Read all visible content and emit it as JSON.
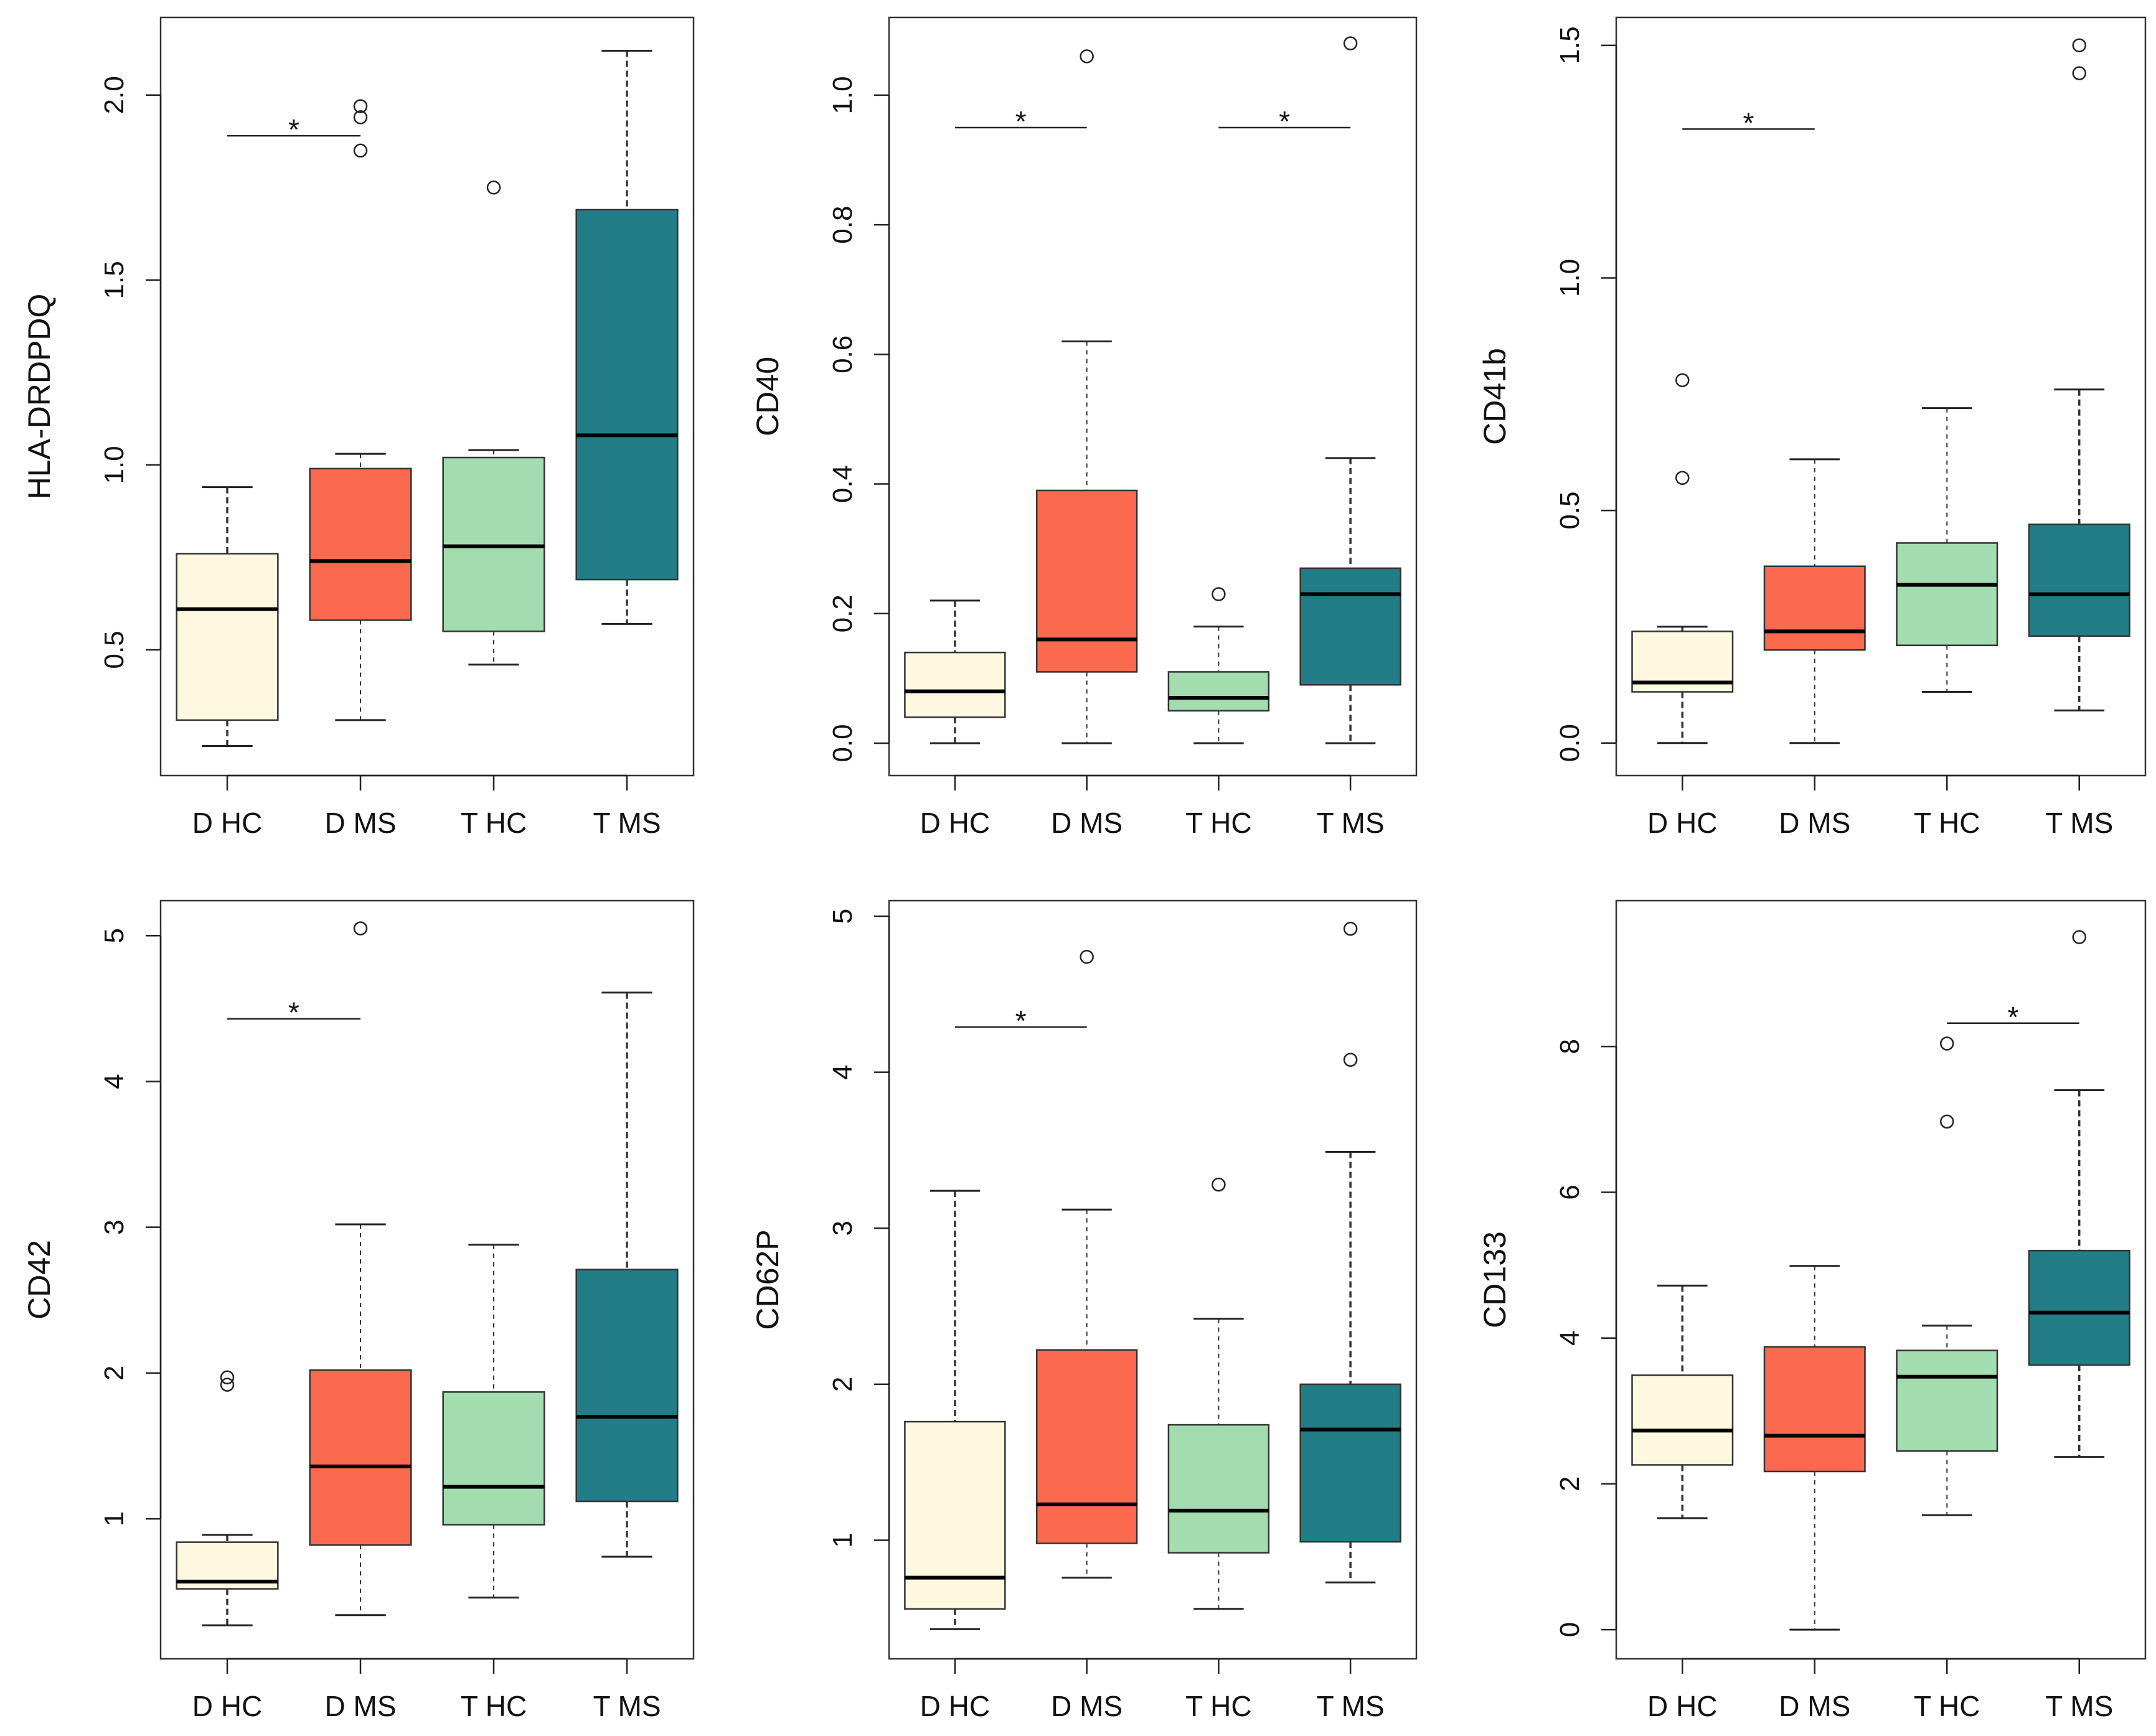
{
  "figure": {
    "categories": [
      "D HC",
      "D MS",
      "T HC",
      "T MS"
    ],
    "colors": {
      "D HC": "#fdf8df",
      "D MS": "#fb6a4e",
      "T HC": "#a3dcae",
      "T MS": "#237d86",
      "median": "#000000",
      "frame": "#333333"
    },
    "significance_symbol": "*"
  },
  "chart_data": [
    {
      "type": "box",
      "ylabel": "HLA-DRDPDQ",
      "ylim": [
        0.16,
        2.21
      ],
      "ticks": [
        0.5,
        1.0,
        1.5,
        2.0
      ],
      "tick_labels": [
        "0.5",
        "1.0",
        "1.5",
        "2.0"
      ],
      "boxes": [
        {
          "name": "D HC",
          "whislo": 0.24,
          "q1": 0.31,
          "med": 0.61,
          "q3": 0.76,
          "whishi": 0.94,
          "fliers": []
        },
        {
          "name": "D MS",
          "whislo": 0.31,
          "q1": 0.58,
          "med": 0.74,
          "q3": 0.99,
          "whishi": 1.03,
          "fliers": [
            1.85,
            1.94,
            1.97
          ]
        },
        {
          "name": "T HC",
          "whislo": 0.46,
          "q1": 0.55,
          "med": 0.78,
          "q3": 1.02,
          "whishi": 1.04,
          "fliers": [
            1.75
          ]
        },
        {
          "name": "T MS",
          "whislo": 0.57,
          "q1": 0.69,
          "med": 1.08,
          "q3": 1.69,
          "whishi": 2.12,
          "fliers": []
        }
      ],
      "significance": [
        {
          "from": "D HC",
          "to": "D MS",
          "y": 1.89
        }
      ]
    },
    {
      "type": "box",
      "ylabel": "CD40",
      "ylim": [
        -0.05,
        1.12
      ],
      "ticks": [
        0.0,
        0.2,
        0.4,
        0.6,
        0.8,
        1.0
      ],
      "tick_labels": [
        "0.0",
        "0.2",
        "0.4",
        "0.6",
        "0.8",
        "1.0"
      ],
      "boxes": [
        {
          "name": "D HC",
          "whislo": 0.0,
          "q1": 0.04,
          "med": 0.08,
          "q3": 0.14,
          "whishi": 0.22,
          "fliers": []
        },
        {
          "name": "D MS",
          "whislo": 0.0,
          "q1": 0.11,
          "med": 0.16,
          "q3": 0.39,
          "whishi": 0.62,
          "fliers": [
            1.06
          ]
        },
        {
          "name": "T HC",
          "whislo": 0.0,
          "q1": 0.05,
          "med": 0.07,
          "q3": 0.11,
          "whishi": 0.18,
          "fliers": [
            0.23
          ]
        },
        {
          "name": "T MS",
          "whislo": 0.0,
          "q1": 0.09,
          "med": 0.23,
          "q3": 0.27,
          "whishi": 0.44,
          "fliers": [
            1.08
          ]
        }
      ],
      "significance": [
        {
          "from": "D HC",
          "to": "D MS",
          "y": 0.95
        },
        {
          "from": "T HC",
          "to": "T MS",
          "y": 0.95
        }
      ]
    },
    {
      "type": "box",
      "ylabel": "CD41b",
      "ylim": [
        -0.07,
        1.56
      ],
      "ticks": [
        0.0,
        0.5,
        1.0,
        1.5
      ],
      "tick_labels": [
        "0.0",
        "0.5",
        "1.0",
        "1.5"
      ],
      "boxes": [
        {
          "name": "D HC",
          "whislo": 0.0,
          "q1": 0.11,
          "med": 0.13,
          "q3": 0.24,
          "whishi": 0.25,
          "fliers": [
            0.57,
            0.78
          ]
        },
        {
          "name": "D MS",
          "whislo": 0.0,
          "q1": 0.2,
          "med": 0.24,
          "q3": 0.38,
          "whishi": 0.61,
          "fliers": []
        },
        {
          "name": "T HC",
          "whislo": 0.11,
          "q1": 0.21,
          "med": 0.34,
          "q3": 0.43,
          "whishi": 0.72,
          "fliers": []
        },
        {
          "name": "T MS",
          "whislo": 0.07,
          "q1": 0.23,
          "med": 0.32,
          "q3": 0.47,
          "whishi": 0.76,
          "fliers": [
            1.44,
            1.5
          ]
        }
      ],
      "significance": [
        {
          "from": "D HC",
          "to": "D MS",
          "y": 1.32
        }
      ]
    },
    {
      "type": "box",
      "ylabel": "CD42",
      "ylim": [
        0.04,
        5.24
      ],
      "ticks": [
        1,
        2,
        3,
        4,
        5
      ],
      "tick_labels": [
        "1",
        "2",
        "3",
        "4",
        "5"
      ],
      "boxes": [
        {
          "name": "D HC",
          "whislo": 0.27,
          "q1": 0.52,
          "med": 0.57,
          "q3": 0.84,
          "whishi": 0.89,
          "fliers": [
            1.92,
            1.97
          ]
        },
        {
          "name": "D MS",
          "whislo": 0.34,
          "q1": 0.82,
          "med": 1.36,
          "q3": 2.02,
          "whishi": 3.02,
          "fliers": [
            5.05
          ]
        },
        {
          "name": "T HC",
          "whislo": 0.46,
          "q1": 0.96,
          "med": 1.22,
          "q3": 1.87,
          "whishi": 2.88,
          "fliers": []
        },
        {
          "name": "T MS",
          "whislo": 0.74,
          "q1": 1.12,
          "med": 1.7,
          "q3": 2.71,
          "whishi": 4.61,
          "fliers": []
        }
      ],
      "significance": [
        {
          "from": "D HC",
          "to": "D MS",
          "y": 4.43
        }
      ]
    },
    {
      "type": "box",
      "ylabel": "CD62P",
      "ylim": [
        0.24,
        5.1
      ],
      "ticks": [
        1,
        2,
        3,
        4,
        5
      ],
      "tick_labels": [
        "1",
        "2",
        "3",
        "4",
        "5"
      ],
      "boxes": [
        {
          "name": "D HC",
          "whislo": 0.43,
          "q1": 0.56,
          "med": 0.76,
          "q3": 1.76,
          "whishi": 3.24,
          "fliers": []
        },
        {
          "name": "D MS",
          "whislo": 0.76,
          "q1": 0.98,
          "med": 1.23,
          "q3": 2.22,
          "whishi": 3.12,
          "fliers": [
            4.74
          ]
        },
        {
          "name": "T HC",
          "whislo": 0.56,
          "q1": 0.92,
          "med": 1.19,
          "q3": 1.74,
          "whishi": 2.42,
          "fliers": [
            3.28
          ]
        },
        {
          "name": "T MS",
          "whislo": 0.73,
          "q1": 0.99,
          "med": 1.71,
          "q3": 2.0,
          "whishi": 3.49,
          "fliers": [
            4.08,
            4.92
          ]
        }
      ],
      "significance": [
        {
          "from": "D HC",
          "to": "D MS",
          "y": 4.29
        }
      ]
    },
    {
      "type": "box",
      "ylabel": "CD133",
      "ylim": [
        -0.4,
        10.0
      ],
      "ticks": [
        0,
        2,
        4,
        6,
        8
      ],
      "tick_labels": [
        "0",
        "2",
        "4",
        "6",
        "8"
      ],
      "boxes": [
        {
          "name": "D HC",
          "whislo": 1.53,
          "q1": 2.26,
          "med": 2.73,
          "q3": 3.49,
          "whishi": 4.72,
          "fliers": []
        },
        {
          "name": "D MS",
          "whislo": 0.0,
          "q1": 2.17,
          "med": 2.66,
          "q3": 3.88,
          "whishi": 4.99,
          "fliers": []
        },
        {
          "name": "T HC",
          "whislo": 1.57,
          "q1": 2.45,
          "med": 3.47,
          "q3": 3.83,
          "whishi": 4.17,
          "fliers": [
            6.97,
            8.04
          ]
        },
        {
          "name": "T MS",
          "whislo": 2.37,
          "q1": 3.63,
          "med": 4.35,
          "q3": 5.2,
          "whishi": 7.4,
          "fliers": [
            9.5
          ]
        }
      ],
      "significance": [
        {
          "from": "T HC",
          "to": "T MS",
          "y": 8.32
        }
      ]
    }
  ]
}
